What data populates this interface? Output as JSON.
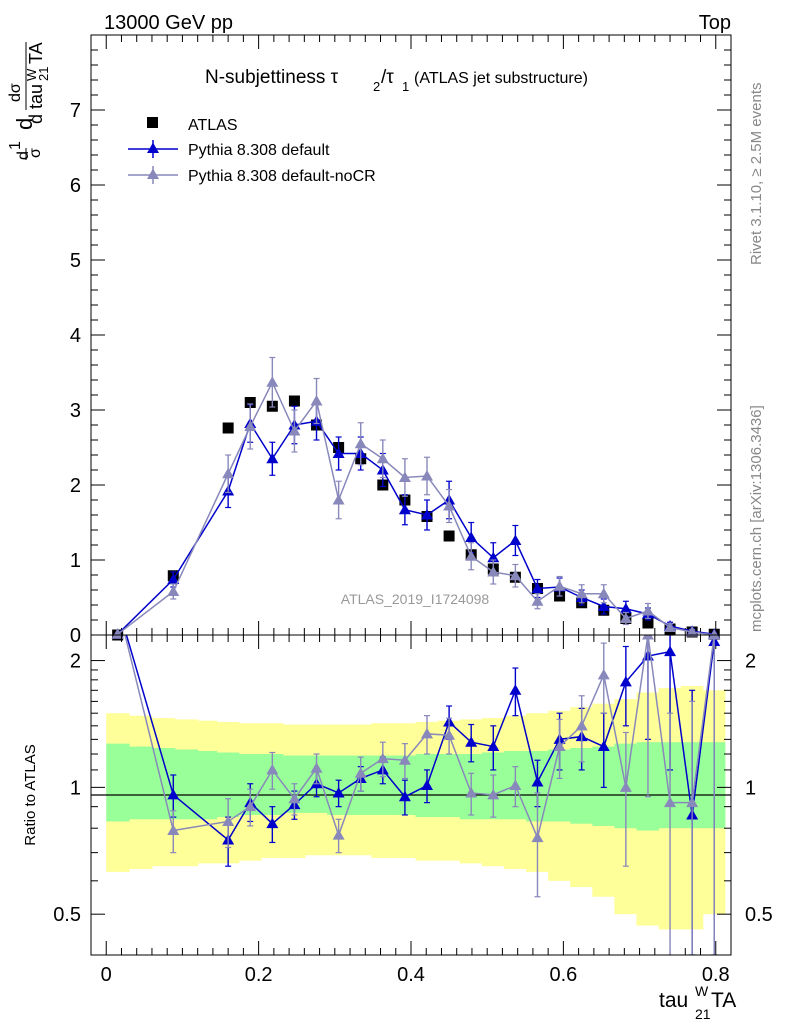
{
  "header": {
    "left": "13000 GeV pp",
    "right": "Top"
  },
  "side_labels": {
    "rivet": "Rivet 3.1.10, ≥ 2.5M events",
    "mcplots": "mcplots.cern.ch [arXiv:1306.3436]"
  },
  "chart_data": [
    {
      "type": "scatter",
      "panel": "main",
      "title": "N-subjettiness τ2/τ1 (ATLAS jet substructure)",
      "title_main": "N-subjettiness τ",
      "title_sub1": "2",
      "title_slash": "/τ",
      "title_sub2": "1",
      "title_paren": "(ATLAS jet substructure)",
      "ylabel_text": "d¹/σ dσ/d tau^W_21 TA",
      "xlabel": "tau^W_21 TA",
      "watermark": "ATLAS_2019_I1724098",
      "xlim": [
        -0.02,
        0.82
      ],
      "ylim": [
        0,
        8
      ],
      "grid": false,
      "legend_position": "top-left",
      "yticks": [
        "0",
        "1",
        "2",
        "3",
        "4",
        "5",
        "6",
        "7"
      ],
      "x": [
        0.015,
        0.088,
        0.16,
        0.189,
        0.218,
        0.247,
        0.276,
        0.305,
        0.334,
        0.363,
        0.392,
        0.421,
        0.45,
        0.479,
        0.508,
        0.537,
        0.566,
        0.595,
        0.624,
        0.653,
        0.682,
        0.711,
        0.74,
        0.769,
        0.798
      ],
      "series": [
        {
          "name": "ATLAS",
          "color": "#000000",
          "marker": "square",
          "values": [
            0.0,
            0.79,
            2.76,
            3.1,
            3.05,
            3.12,
            2.8,
            2.5,
            2.35,
            2.0,
            1.8,
            1.58,
            1.32,
            1.07,
            0.88,
            0.77,
            0.62,
            0.52,
            0.43,
            0.33,
            0.22,
            0.16,
            0.08,
            0.04,
            0.01
          ],
          "errors": [
            0,
            0.03,
            0.05,
            0.05,
            0.05,
            0.05,
            0.05,
            0.05,
            0.05,
            0.05,
            0.05,
            0.05,
            0.05,
            0.05,
            0.05,
            0.04,
            0.04,
            0.04,
            0.04,
            0.03,
            0.03,
            0.02,
            0.02,
            0.01,
            0.01
          ]
        },
        {
          "name": "Pythia 8.308 default",
          "color": "#0000cc",
          "marker": "triangle",
          "values": [
            0.01,
            0.74,
            1.92,
            2.82,
            2.35,
            2.8,
            2.85,
            2.42,
            2.42,
            2.2,
            1.67,
            1.6,
            1.8,
            1.3,
            1.03,
            1.26,
            0.62,
            0.64,
            0.5,
            0.38,
            0.35,
            0.28,
            0.12,
            0.05,
            0.01
          ],
          "errors": [
            0.01,
            0.1,
            0.22,
            0.25,
            0.22,
            0.25,
            0.25,
            0.22,
            0.22,
            0.22,
            0.2,
            0.2,
            0.25,
            0.2,
            0.2,
            0.2,
            0.12,
            0.12,
            0.1,
            0.1,
            0.1,
            0.08,
            0.05,
            0.03,
            0.01
          ]
        },
        {
          "name": "Pythia 8.308 default-noCR",
          "color": "#8888bb",
          "marker": "triangle",
          "values": [
            0.01,
            0.58,
            2.15,
            2.78,
            3.37,
            2.72,
            3.12,
            1.8,
            2.55,
            2.35,
            2.1,
            2.12,
            1.72,
            1.05,
            0.84,
            0.79,
            0.45,
            0.65,
            0.55,
            0.55,
            0.22,
            0.32,
            0.1,
            0.04,
            0.0
          ],
          "errors": [
            0.01,
            0.1,
            0.25,
            0.3,
            0.33,
            0.28,
            0.3,
            0.25,
            0.28,
            0.25,
            0.25,
            0.25,
            0.22,
            0.18,
            0.16,
            0.15,
            0.1,
            0.13,
            0.12,
            0.12,
            0.08,
            0.1,
            0.05,
            0.03,
            0.01
          ]
        }
      ]
    },
    {
      "type": "scatter",
      "panel": "ratio",
      "ylabel": "Ratio to ATLAS",
      "xlabel": "tau^W_21 TA",
      "y_scale": "log",
      "ylim": [
        0.4,
        2.3
      ],
      "xlim": [
        -0.02,
        0.82
      ],
      "yticks": [
        "0.5",
        "1",
        "2"
      ],
      "xticks": [
        "0",
        "0.2",
        "0.4",
        "0.6",
        "0.8"
      ],
      "bands": {
        "inner_color": "#99ff99",
        "outer_color": "#ffff99",
        "x_edges": [
          0.0,
          0.03,
          0.06,
          0.09,
          0.12,
          0.145,
          0.174,
          0.203,
          0.232,
          0.261,
          0.29,
          0.319,
          0.348,
          0.377,
          0.406,
          0.435,
          0.464,
          0.493,
          0.522,
          0.551,
          0.58,
          0.609,
          0.638,
          0.667,
          0.696,
          0.725,
          0.754,
          0.783,
          0.812
        ],
        "inner_lo": [
          0.83,
          0.84,
          0.84,
          0.84,
          0.84,
          0.85,
          0.86,
          0.86,
          0.87,
          0.87,
          0.86,
          0.86,
          0.86,
          0.86,
          0.85,
          0.85,
          0.84,
          0.84,
          0.84,
          0.83,
          0.83,
          0.82,
          0.81,
          0.8,
          0.79,
          0.8,
          0.8,
          0.8
        ],
        "inner_hi": [
          1.27,
          1.25,
          1.24,
          1.23,
          1.22,
          1.21,
          1.2,
          1.2,
          1.19,
          1.19,
          1.19,
          1.19,
          1.19,
          1.19,
          1.2,
          1.2,
          1.2,
          1.21,
          1.22,
          1.22,
          1.23,
          1.24,
          1.25,
          1.27,
          1.28,
          1.28,
          1.28,
          1.28
        ],
        "outer_lo": [
          0.63,
          0.64,
          0.65,
          0.65,
          0.66,
          0.66,
          0.67,
          0.68,
          0.68,
          0.69,
          0.69,
          0.69,
          0.68,
          0.68,
          0.67,
          0.67,
          0.66,
          0.65,
          0.64,
          0.63,
          0.6,
          0.58,
          0.55,
          0.5,
          0.47,
          0.46,
          0.46,
          0.5
        ],
        "outer_hi": [
          1.5,
          1.48,
          1.46,
          1.45,
          1.44,
          1.43,
          1.42,
          1.42,
          1.41,
          1.41,
          1.41,
          1.41,
          1.42,
          1.42,
          1.43,
          1.44,
          1.45,
          1.46,
          1.48,
          1.5,
          1.52,
          1.55,
          1.58,
          1.62,
          1.68,
          1.72,
          1.74,
          1.7
        ]
      },
      "x": [
        0.088,
        0.16,
        0.189,
        0.218,
        0.247,
        0.276,
        0.305,
        0.334,
        0.363,
        0.392,
        0.421,
        0.45,
        0.479,
        0.508,
        0.537,
        0.566,
        0.595,
        0.624,
        0.653,
        0.682,
        0.711,
        0.74,
        0.769,
        0.798
      ],
      "series": [
        {
          "name": "Pythia 8.308 default",
          "color": "#0000cc",
          "values": [
            0.96,
            0.75,
            0.92,
            0.82,
            0.91,
            1.02,
            0.97,
            1.05,
            1.1,
            0.95,
            1.01,
            1.43,
            1.28,
            1.25,
            1.7,
            1.03,
            1.3,
            1.32,
            1.25,
            1.78,
            2.05,
            2.1,
            0.86,
            2.22
          ],
          "lo": [
            0.85,
            0.65,
            0.83,
            0.74,
            0.84,
            0.95,
            0.9,
            0.98,
            1.02,
            0.86,
            0.92,
            1.3,
            1.15,
            1.1,
            1.48,
            0.9,
            1.1,
            1.1,
            1.0,
            1.4,
            1.3,
            1.1,
            0.35,
            0.35
          ],
          "hi": [
            1.07,
            0.85,
            1.02,
            0.9,
            0.98,
            1.09,
            1.04,
            1.12,
            1.18,
            1.04,
            1.1,
            1.56,
            1.41,
            1.4,
            1.92,
            1.16,
            1.5,
            1.54,
            1.5,
            2.16,
            2.3,
            2.3,
            1.7,
            2.3
          ]
        },
        {
          "name": "Pythia 8.308 default-noCR",
          "color": "#8888bb",
          "values": [
            0.79,
            0.83,
            0.9,
            1.1,
            0.94,
            1.11,
            0.77,
            1.08,
            1.17,
            1.16,
            1.34,
            1.33,
            0.97,
            0.96,
            1.01,
            0.76,
            1.25,
            1.4,
            1.85,
            1.0,
            2.3,
            0.92,
            0.92,
            2.3
          ],
          "lo": [
            0.7,
            0.72,
            0.81,
            0.99,
            0.86,
            1.02,
            0.7,
            0.98,
            1.06,
            1.05,
            1.2,
            1.2,
            0.86,
            0.85,
            0.9,
            0.55,
            1.05,
            1.15,
            1.5,
            0.65,
            0.95,
            0.4,
            0.35,
            0.35
          ],
          "hi": [
            0.88,
            0.94,
            0.99,
            1.21,
            1.02,
            1.2,
            0.84,
            1.18,
            1.28,
            1.27,
            1.48,
            1.46,
            1.08,
            1.07,
            1.12,
            0.97,
            1.45,
            1.65,
            2.2,
            1.35,
            2.3,
            1.5,
            1.6,
            2.3
          ]
        }
      ]
    }
  ]
}
